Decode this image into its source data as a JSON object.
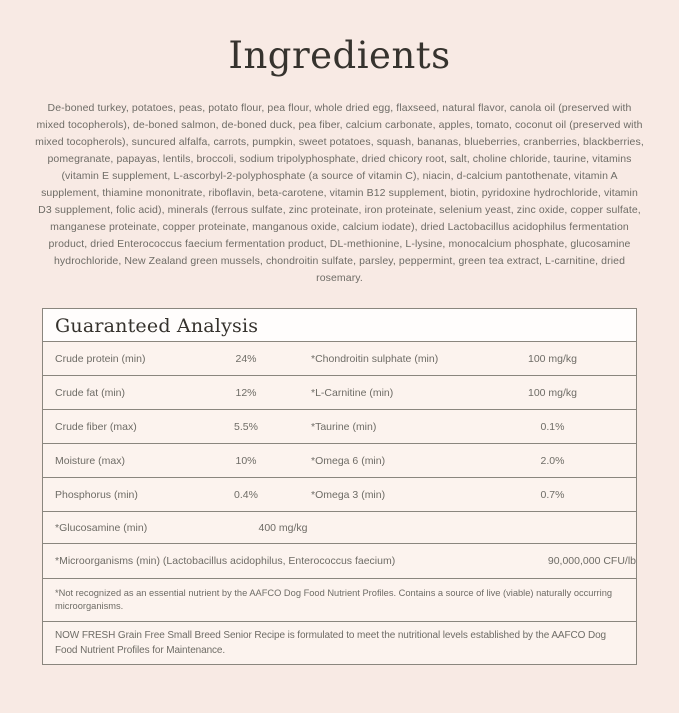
{
  "page": {
    "title": "Ingredients",
    "ingredients_text": "De-boned turkey, potatoes, peas, potato flour, pea flour, whole dried egg, flaxseed, natural flavor, canola oil (preserved with mixed tocopherols), de-boned salmon, de-boned duck, pea fiber, calcium carbonate, apples, tomato, coconut oil (preserved with mixed tocopherols), suncured alfalfa, carrots, pumpkin, sweet potatoes, squash, bananas, blueberries, cranberries, blackberries, pomegranate, papayas, lentils, broccoli, sodium tripolyphosphate, dried chicory root, salt, choline chloride, taurine, vitamins (vitamin E supplement, L-ascorbyl-2-polyphosphate (a source of vitamin C), niacin, d-calcium pantothenate, vitamin A supplement, thiamine mononitrate, riboflavin, beta-carotene, vitamin B12 supplement, biotin, pyridoxine hydrochloride, vitamin D3 supplement, folic acid), minerals (ferrous sulfate, zinc proteinate, iron proteinate, selenium yeast, zinc oxide, copper sulfate, manganese proteinate, copper proteinate, manganous oxide, calcium iodate), dried Lactobacillus acidophilus fermentation product, dried Enterococcus faecium fermentation product, DL-methionine, L-lysine, monocalcium phosphate, glucosamine hydrochloride, New Zealand green mussels, chondroitin sulfate, parsley, peppermint, green tea extract, L-carnitine, dried rosemary."
  },
  "analysis": {
    "heading": "Guaranteed Analysis",
    "rows": [
      {
        "label_left": "Crude protein (min)",
        "value_left": "24%",
        "label_right": "*Chondroitin sulphate (min)",
        "value_right": "100 mg/kg"
      },
      {
        "label_left": "Crude fat (min)",
        "value_left": "12%",
        "label_right": "*L-Carnitine (min)",
        "value_right": "100 mg/kg"
      },
      {
        "label_left": "Crude fiber (max)",
        "value_left": "5.5%",
        "label_right": "*Taurine (min)",
        "value_right": "0.1%"
      },
      {
        "label_left": "Moisture (max)",
        "value_left": "10%",
        "label_right": "*Omega 6 (min)",
        "value_right": "2.0%"
      },
      {
        "label_left": "Phosphorus (min)",
        "value_left": "0.4%",
        "label_right": "*Omega 3 (min)",
        "value_right": "0.7%"
      }
    ],
    "glucosamine_row": {
      "label": "*Glucosamine (min)",
      "value": "400 mg/kg"
    },
    "microorganisms_row": {
      "label": "*Microorganisms (min) (Lactobacillus acidophilus, Enterococcus faecium)",
      "value": "90,000,000 CFU/lb"
    },
    "footnote": "*Not recognized as an essential nutrient by the AAFCO Dog Food Nutrient Profiles. Contains a source of live (viable) naturally occurring microorganisms.",
    "statement": "NOW FRESH Grain Free Small Breed Senior Recipe is formulated to meet the nutritional levels established by the AAFCO Dog Food Nutrient Profiles for Maintenance."
  },
  "colors": {
    "page_background": "#f8eae4",
    "panel_background": "#fcf3ee",
    "header_background": "#fffdfc",
    "border": "#8a867e",
    "heading_text": "#36332e",
    "body_text": "#6e6c66"
  }
}
